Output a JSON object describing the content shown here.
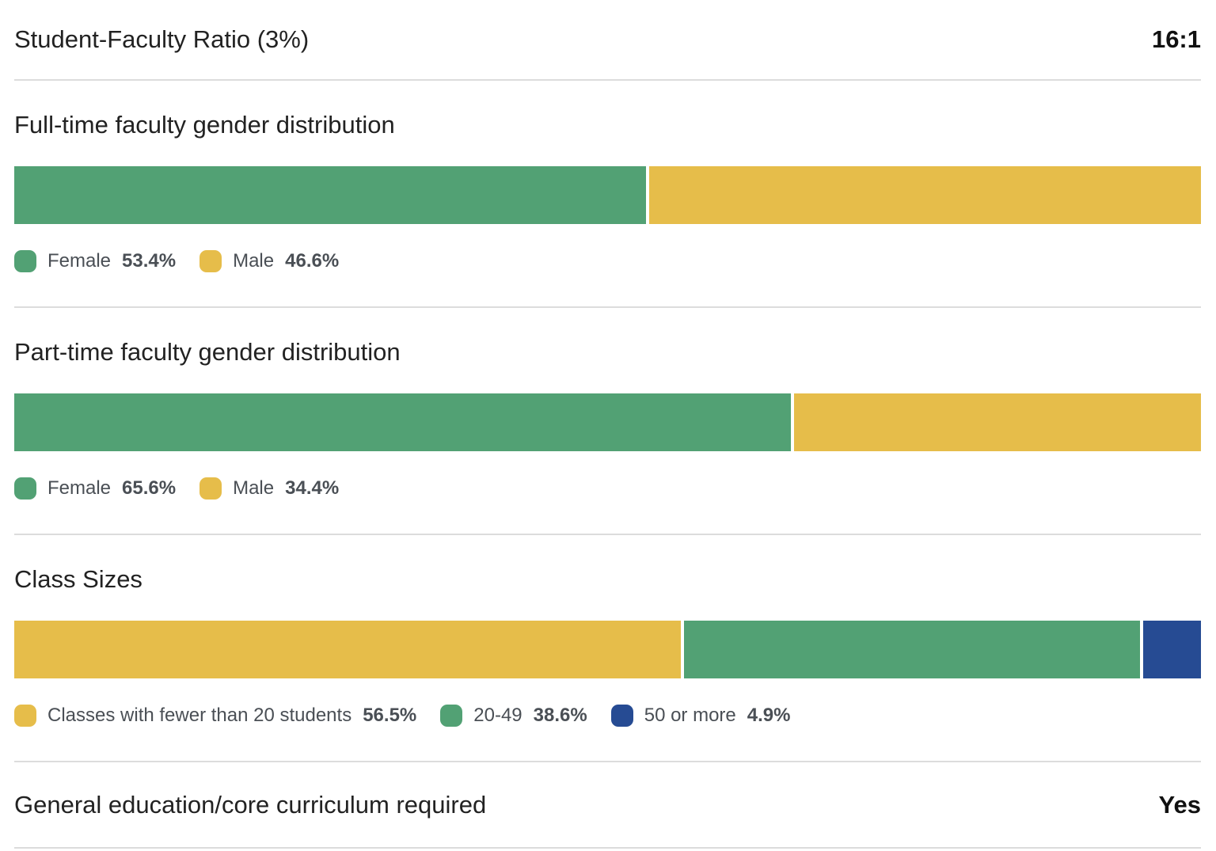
{
  "ratio": {
    "label": "Student-Faculty Ratio (3%)",
    "value": "16:1"
  },
  "colors": {
    "green": "#52a174",
    "yellow": "#e6bd4a",
    "blue": "#264b93",
    "divider": "#dcdcdc"
  },
  "fulltime": {
    "title": "Full-time faculty gender distribution",
    "segments": [
      {
        "label": "Female",
        "pct_text": "53.4%",
        "value": 53.4,
        "color": "#52a174"
      },
      {
        "label": "Male",
        "pct_text": "46.6%",
        "value": 46.6,
        "color": "#e6bd4a"
      }
    ]
  },
  "parttime": {
    "title": "Part-time faculty gender distribution",
    "segments": [
      {
        "label": "Female",
        "pct_text": "65.6%",
        "value": 65.6,
        "color": "#52a174"
      },
      {
        "label": "Male",
        "pct_text": "34.4%",
        "value": 34.4,
        "color": "#e6bd4a"
      }
    ]
  },
  "classsizes": {
    "title": "Class Sizes",
    "segments": [
      {
        "label": "Classes with fewer than 20 students",
        "pct_text": "56.5%",
        "value": 56.5,
        "color": "#e6bd4a"
      },
      {
        "label": "20-49",
        "pct_text": "38.6%",
        "value": 38.6,
        "color": "#52a174"
      },
      {
        "label": "50 or more",
        "pct_text": "4.9%",
        "value": 4.9,
        "color": "#264b93"
      }
    ]
  },
  "gened": {
    "label": "General education/core curriculum required",
    "value": "Yes"
  }
}
